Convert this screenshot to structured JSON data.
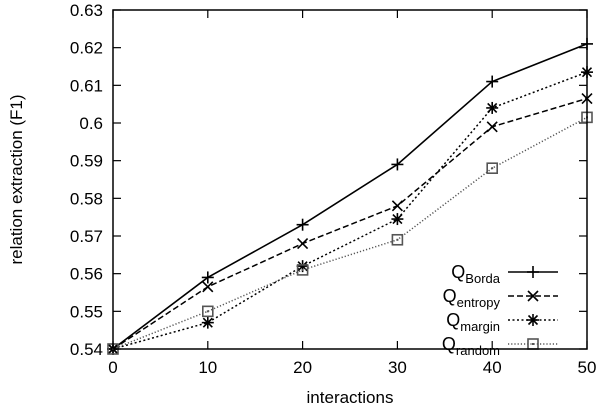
{
  "chart_data": {
    "type": "line",
    "title": "",
    "xlabel": "interactions",
    "ylabel": "relation extraction (F1)",
    "x": [
      0,
      10,
      20,
      30,
      40,
      50
    ],
    "xlim": [
      0,
      50
    ],
    "ylim": [
      0.54,
      0.63
    ],
    "xticks": [
      "0",
      "10",
      "20",
      "30",
      "40",
      "50"
    ],
    "yticks": [
      "0.54",
      "0.55",
      "0.56",
      "0.57",
      "0.58",
      "0.59",
      "0.6",
      "0.61",
      "0.62",
      "0.63"
    ],
    "grid": false,
    "legend_position": "bottom-right",
    "series": [
      {
        "base": "Q",
        "sub": "Borda",
        "marker": "plus",
        "dash": "solid",
        "color": "#000000",
        "values": [
          0.54,
          0.559,
          0.573,
          0.589,
          0.611,
          0.621
        ]
      },
      {
        "base": "Q",
        "sub": "entropy",
        "marker": "cross",
        "dash": "dashed",
        "color": "#000000",
        "values": [
          0.54,
          0.5565,
          0.568,
          0.578,
          0.599,
          0.6065
        ]
      },
      {
        "base": "Q",
        "sub": "margin",
        "marker": "star",
        "dash": "dotted",
        "color": "#000000",
        "values": [
          0.54,
          0.547,
          0.562,
          0.5745,
          0.604,
          0.6135
        ]
      },
      {
        "base": "Q",
        "sub": "random",
        "marker": "square",
        "dash": "dotted-fine",
        "color": "#555555",
        "values": [
          0.54,
          0.55,
          0.561,
          0.569,
          0.588,
          0.6015
        ]
      }
    ]
  }
}
